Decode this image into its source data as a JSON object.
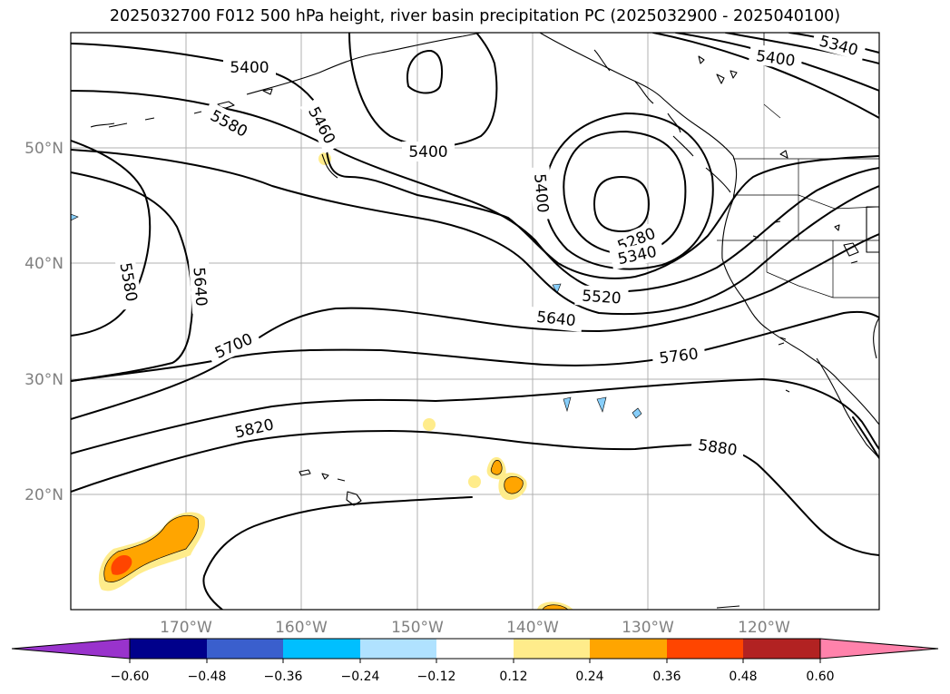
{
  "title": "2025032700 F012 500 hPa height, river basin precipitation PC (2025032900 - 2025040100)",
  "map": {
    "lon_labels": [
      "170°W",
      "160°W",
      "150°W",
      "140°W",
      "130°W",
      "120°W"
    ],
    "lat_labels": [
      "50°N",
      "40°N",
      "30°N",
      "20°N"
    ],
    "contour_labels": [
      "5400",
      "5580",
      "5460",
      "5400",
      "5400",
      "5340",
      "5400",
      "5280",
      "5340",
      "5580",
      "5640",
      "5520",
      "5640",
      "5700",
      "5760",
      "5820",
      "5880"
    ]
  },
  "colorbar": {
    "ticks": [
      "−0.60",
      "−0.48",
      "−0.36",
      "−0.24",
      "−0.12",
      "0.12",
      "0.24",
      "0.36",
      "0.48",
      "0.60"
    ],
    "colors": [
      "#9933cc",
      "#00008b",
      "#3a5fcd",
      "#00bfff",
      "#b0e2ff",
      "#ffffff",
      "#ffec8b",
      "#ffa500",
      "#ff4500",
      "#b22222",
      "#ff82ab"
    ]
  }
}
